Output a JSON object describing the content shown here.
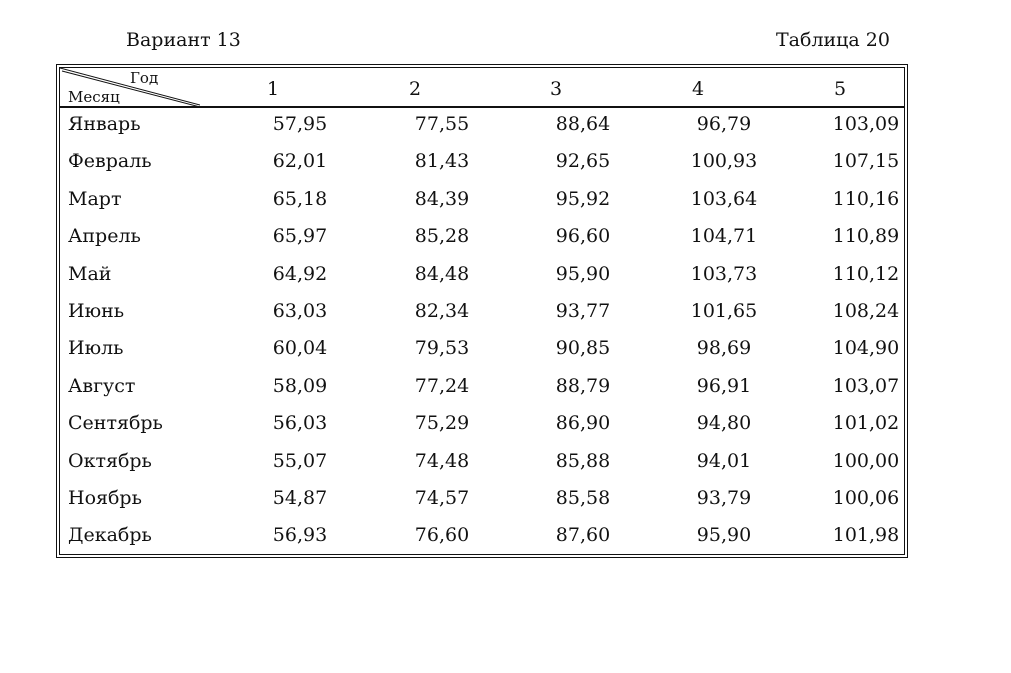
{
  "header": {
    "variant": "Вариант 13",
    "table_label": "Таблица 20"
  },
  "table": {
    "corner_top": "Год",
    "corner_bottom": "Месяц",
    "columns": [
      "1",
      "2",
      "3",
      "4",
      "5"
    ],
    "rows": [
      {
        "month": "Январь",
        "values": [
          "57,95",
          "77,55",
          "88,64",
          "96,79",
          "103,09"
        ]
      },
      {
        "month": "Февраль",
        "values": [
          "62,01",
          "81,43",
          "92,65",
          "100,93",
          "107,15"
        ]
      },
      {
        "month": "Март",
        "values": [
          "65,18",
          "84,39",
          "95,92",
          "103,64",
          "110,16"
        ]
      },
      {
        "month": "Апрель",
        "values": [
          "65,97",
          "85,28",
          "96,60",
          "104,71",
          "110,89"
        ]
      },
      {
        "month": "Май",
        "values": [
          "64,92",
          "84,48",
          "95,90",
          "103,73",
          "110,12"
        ]
      },
      {
        "month": "Июнь",
        "values": [
          "63,03",
          "82,34",
          "93,77",
          "101,65",
          "108,24"
        ]
      },
      {
        "month": "Июль",
        "values": [
          "60,04",
          "79,53",
          "90,85",
          "98,69",
          "104,90"
        ]
      },
      {
        "month": "Август",
        "values": [
          "58,09",
          "77,24",
          "88,79",
          "96,91",
          "103,07"
        ]
      },
      {
        "month": "Сентябрь",
        "values": [
          "56,03",
          "75,29",
          "86,90",
          "94,80",
          "101,02"
        ]
      },
      {
        "month": "Октябрь",
        "values": [
          "55,07",
          "74,48",
          "85,88",
          "94,01",
          "100,00"
        ]
      },
      {
        "month": "Ноябрь",
        "values": [
          "54,87",
          "74,57",
          "85,58",
          "93,79",
          "100,06"
        ]
      },
      {
        "month": "Декабрь",
        "values": [
          "56,93",
          "76,60",
          "87,60",
          "95,90",
          "101,98"
        ]
      }
    ]
  }
}
